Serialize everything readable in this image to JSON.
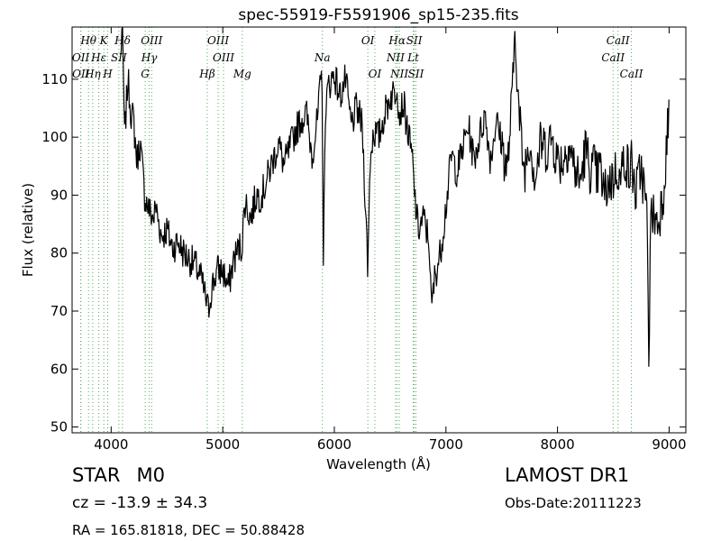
{
  "chart_data": {
    "type": "line",
    "title": "spec-55919-F5591906_sp15-235.fits",
    "xlabel": "Wavelength (Å)",
    "ylabel": "Flux (relative)",
    "xlim": [
      3650,
      9150
    ],
    "ylim": [
      49,
      119
    ],
    "xticks": [
      4000,
      5000,
      6000,
      7000,
      8000,
      9000
    ],
    "yticks": [
      50,
      60,
      70,
      80,
      90,
      100,
      110
    ],
    "grid": false,
    "series": [
      {
        "color": "#000000",
        "x": [
          3700,
          3750,
          3800,
          3850,
          3900,
          3950,
          4000,
          4030,
          4060,
          4080,
          4100,
          4120,
          4150,
          4180,
          4200,
          4230,
          4260,
          4300,
          4330,
          4350,
          4380,
          4400,
          4450,
          4500,
          4550,
          4600,
          4650,
          4700,
          4750,
          4800,
          4850,
          4870,
          4900,
          4950,
          5000,
          5050,
          5100,
          5150,
          5170,
          5200,
          5250,
          5300,
          5350,
          5400,
          5450,
          5500,
          5550,
          5600,
          5650,
          5700,
          5750,
          5800,
          5850,
          5880,
          5893,
          5900,
          5920,
          5950,
          6000,
          6050,
          6100,
          6150,
          6200,
          6250,
          6280,
          6300,
          6320,
          6350,
          6400,
          6450,
          6500,
          6550,
          6562,
          6580,
          6620,
          6650,
          6700,
          6720,
          6750,
          6800,
          6850,
          6870,
          6900,
          6950,
          7000,
          7050,
          7100,
          7150,
          7200,
          7250,
          7300,
          7350,
          7400,
          7450,
          7500,
          7550,
          7600,
          7620,
          7650,
          7700,
          7750,
          7800,
          7850,
          7900,
          7950,
          8000,
          8050,
          8100,
          8150,
          8200,
          8250,
          8300,
          8330,
          8350,
          8380,
          8400,
          8420,
          8450,
          8500,
          8542,
          8560,
          8600,
          8650,
          8662,
          8700,
          8750,
          8800,
          8820,
          8830,
          8850,
          8900,
          8950,
          9000
        ],
        "y": [
          null,
          null,
          null,
          null,
          null,
          null,
          null,
          null,
          null,
          112,
          120,
          100,
          110,
          104,
          103,
          96,
          99,
          90,
          88,
          87,
          86,
          88,
          83,
          84,
          81,
          82,
          80,
          79,
          78,
          76,
          72,
          70,
          74,
          77,
          77,
          74,
          79,
          81,
          81,
          89,
          86,
          90,
          90,
          93,
          96,
          99,
          95,
          98,
          101,
          103,
          104,
          97,
          103,
          110,
          110,
          75,
          105,
          109,
          111,
          107,
          110,
          102,
          105,
          102,
          88,
          77,
          96,
          101,
          100,
          104,
          107,
          108,
          110,
          104,
          106,
          102,
          96,
          90,
          84,
          86,
          82,
          70,
          76,
          80,
          88,
          97,
          94,
          98,
          102,
          96,
          100,
          104,
          96,
          103,
          99,
          94,
          109,
          120,
          105,
          94,
          100,
          93,
          99,
          98,
          100,
          96,
          96,
          99,
          95,
          92,
          98,
          94,
          95,
          93,
          95,
          92,
          90,
          92,
          93,
          95,
          92,
          97,
          93,
          96,
          90,
          95,
          87,
          60,
          84,
          87,
          85,
          91,
          105
        ]
      }
    ],
    "lines": [
      {
        "label": "Hθ",
        "x": 3797,
        "row": 0
      },
      {
        "label": "OII",
        "x": 3727,
        "row": 1
      },
      {
        "label": "OII",
        "x": 3729,
        "row": 2
      },
      {
        "label": "Hη",
        "x": 3835,
        "row": 2
      },
      {
        "label": "Hε",
        "x": 3889,
        "row": 1
      },
      {
        "label": "K",
        "x": 3934,
        "row": 0
      },
      {
        "label": "H",
        "x": 3969,
        "row": 2
      },
      {
        "label": "SII",
        "x": 4069,
        "row": 1
      },
      {
        "label": "Hδ",
        "x": 4102,
        "row": 0
      },
      {
        "label": "OIII",
        "x": 4363,
        "row": 0
      },
      {
        "label": "Hγ",
        "x": 4341,
        "row": 1
      },
      {
        "label": "G",
        "x": 4305,
        "row": 2
      },
      {
        "label": "OIII",
        "x": 4959,
        "row": 0
      },
      {
        "label": "OIII",
        "x": 5007,
        "row": 1
      },
      {
        "label": "Hβ",
        "x": 4861,
        "row": 2
      },
      {
        "label": "Mg",
        "x": 5175,
        "row": 2
      },
      {
        "label": "Na",
        "x": 5893,
        "row": 1
      },
      {
        "label": "OI",
        "x": 6300,
        "row": 0
      },
      {
        "label": "OI",
        "x": 6363,
        "row": 2
      },
      {
        "label": "Hα",
        "x": 6563,
        "row": 0
      },
      {
        "label": "NII",
        "x": 6548,
        "row": 1
      },
      {
        "label": "NII",
        "x": 6583,
        "row": 2
      },
      {
        "label": "SII",
        "x": 6716,
        "row": 0
      },
      {
        "label": "Lt",
        "x": 6707,
        "row": 1
      },
      {
        "label": "SII",
        "x": 6731,
        "row": 2
      },
      {
        "label": "CaII",
        "x": 8542,
        "row": 0
      },
      {
        "label": "CaII",
        "x": 8498,
        "row": 1
      },
      {
        "label": "CaII",
        "x": 8662,
        "row": 2
      }
    ]
  },
  "info": {
    "class_label": "STAR",
    "subclass_label": "M0",
    "redshift_text": "cz = -13.9 ± 34.3",
    "coords_text": "RA = 165.81818, DEC = 50.88428",
    "survey_label": "LAMOST DR1",
    "obs_date_text": "Obs-Date:20111223"
  }
}
